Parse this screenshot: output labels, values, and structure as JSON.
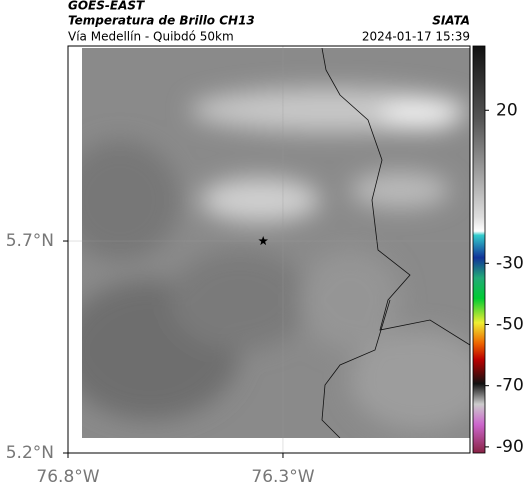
{
  "header": {
    "source": "GOES-EAST",
    "product": "Temperatura de Brillo CH13",
    "route": "Vía Medellín - Quibdó 50km",
    "agency": "SIATA",
    "timestamp": "2024-01-17 15:39"
  },
  "map": {
    "xlim": [
      -76.8,
      -75.865
    ],
    "ylim": [
      5.2,
      6.16
    ],
    "xticks": [
      {
        "value": -76.8,
        "label": "76.8°W"
      },
      {
        "value": -76.3,
        "label": "76.3°W"
      }
    ],
    "yticks": [
      {
        "value": 5.2,
        "label": "5.2°N"
      },
      {
        "value": 5.7,
        "label": "5.7°N"
      }
    ],
    "grid": true,
    "marker": {
      "lon": -76.346,
      "lat": 5.7
    }
  },
  "colorbar": {
    "lim": [
      -92,
      41
    ],
    "ticks": [
      20,
      -30,
      -50,
      -70,
      -90
    ]
  }
}
